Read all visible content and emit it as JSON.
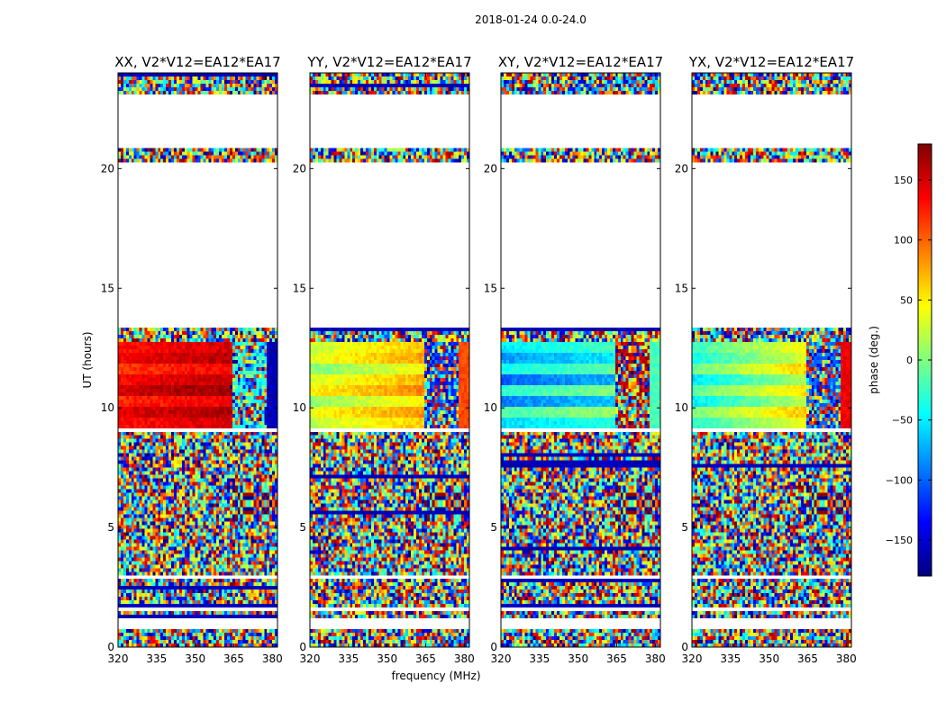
{
  "chart_data": {
    "type": "heatmap",
    "suptitle": "2018-01-24 0.0-24.0",
    "xlabel": "frequency (MHz)",
    "ylabel": "UT (hours)",
    "xlim": [
      320,
      382
    ],
    "ylim": [
      0,
      24
    ],
    "xticks": [
      320,
      335,
      350,
      365,
      380
    ],
    "xtick_labels": [
      "320",
      "335",
      "350",
      "365",
      "380"
    ],
    "yticks": [
      0,
      5,
      10,
      15,
      20
    ],
    "ytick_labels": [
      "0",
      "5",
      "10",
      "15",
      "20"
    ],
    "colorbar": {
      "label": "phase (deg.)",
      "range": [
        -180,
        180
      ],
      "ticks": [
        -150,
        -100,
        -50,
        0,
        50,
        100,
        150
      ],
      "tick_labels": [
        "−150",
        "−100",
        "−50",
        "0",
        "50",
        "100",
        "150"
      ],
      "colormap": "jet",
      "colors": [
        "#00007f",
        "#0000ff",
        "#007fff",
        "#00ffff",
        "#7fff7f",
        "#ffff00",
        "#ff7f00",
        "#ff0000",
        "#7f0000"
      ]
    },
    "coherent_band_hours": [
      9.1,
      12.7
    ],
    "blank_gaps_hours": [
      [
        0.75,
        1.15
      ],
      [
        1.45,
        1.65
      ],
      [
        2.9,
        3.0
      ],
      [
        9.0,
        9.1
      ],
      [
        13.4,
        20.3
      ],
      [
        20.8,
        23.05
      ]
    ],
    "interference_freq_start_mhz": 364,
    "panels": [
      {
        "title": "XX, V2*V12=EA12*EA17",
        "band_phase_low_freq_deg": 130,
        "band_phase_high_freq_deg": 140,
        "band_gradient_deg": 30,
        "band_stripe_deg": [
          0,
          15,
          -10,
          20,
          5,
          -15,
          10,
          0
        ],
        "edge_phase_deg": -160
      },
      {
        "title": "YY, V2*V12=EA12*EA17",
        "band_phase_low_freq_deg": 20,
        "band_phase_high_freq_deg": 60,
        "band_gradient_deg": 60,
        "band_stripe_deg": [
          0,
          20,
          -15,
          25,
          10,
          -20,
          15,
          5
        ],
        "edge_phase_deg": 110
      },
      {
        "title": "XY, V2*V12=EA12*EA17",
        "band_phase_low_freq_deg": -60,
        "band_phase_high_freq_deg": -20,
        "band_gradient_deg": 40,
        "band_stripe_deg": [
          0,
          40,
          -30,
          30,
          -40,
          20,
          -20,
          10
        ],
        "edge_phase_deg": -20
      },
      {
        "title": "YX, V2*V12=EA12*EA17",
        "band_phase_low_freq_deg": -30,
        "band_phase_high_freq_deg": 80,
        "band_gradient_deg": 100,
        "band_stripe_deg": [
          0,
          25,
          -20,
          15,
          -25,
          20,
          -10,
          5
        ],
        "edge_phase_deg": 140
      }
    ]
  }
}
